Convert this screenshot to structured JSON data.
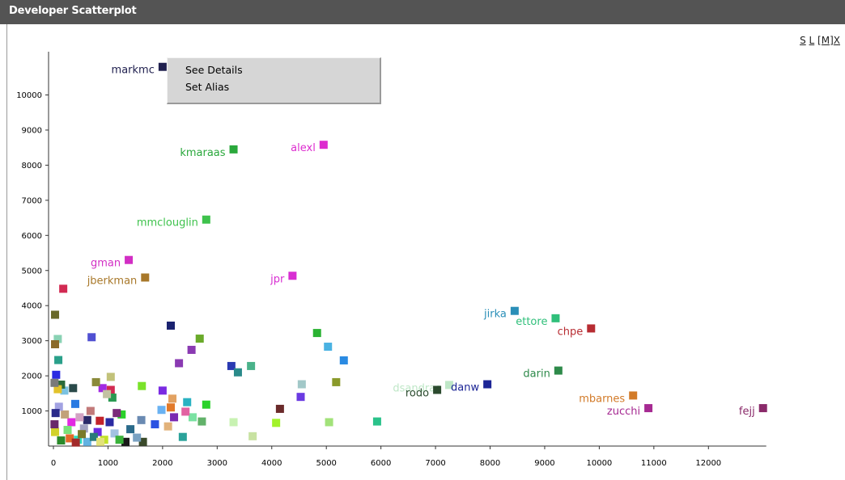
{
  "window": {
    "title": "Developer Scatterplot"
  },
  "controls": {
    "s": "S",
    "l": "L",
    "m": "[M]",
    "x": "X"
  },
  "context_menu": {
    "items": [
      "See Details",
      "Set Alias"
    ]
  },
  "chart_data": {
    "type": "scatter",
    "title": "",
    "xlabel": "",
    "ylabel": "",
    "xlim": [
      0,
      13000
    ],
    "ylim": [
      0,
      11000
    ],
    "xticks": [
      0,
      1000,
      2000,
      3000,
      4000,
      5000,
      6000,
      7000,
      8000,
      9000,
      10000,
      11000,
      12000
    ],
    "yticks": [
      1000,
      2000,
      3000,
      4000,
      5000,
      6000,
      7000,
      8000,
      9000,
      10000
    ],
    "labeled_points": [
      {
        "name": "markmc",
        "x": 2000,
        "y": 10800,
        "color": "#20204f"
      },
      {
        "name": "kmaraas",
        "x": 3300,
        "y": 8450,
        "color": "#2aa83c"
      },
      {
        "name": "alexl",
        "x": 4950,
        "y": 8580,
        "color": "#dd2ccf"
      },
      {
        "name": "mmclouglin",
        "x": 2800,
        "y": 6450,
        "color": "#3ec24c"
      },
      {
        "name": "gman",
        "x": 1380,
        "y": 5300,
        "color": "#d22ec4"
      },
      {
        "name": "jberkman",
        "x": 1680,
        "y": 4800,
        "color": "#a8782a"
      },
      {
        "name": "jpr",
        "x": 4380,
        "y": 4850,
        "color": "#d82ed2"
      },
      {
        "name": "jirka",
        "x": 8450,
        "y": 3850,
        "color": "#2a8fb8"
      },
      {
        "name": "ettore",
        "x": 9200,
        "y": 3640,
        "color": "#2fbf7a"
      },
      {
        "name": "chpe",
        "x": 9850,
        "y": 3350,
        "color": "#b72c32"
      },
      {
        "name": "darin",
        "x": 9250,
        "y": 2150,
        "color": "#2e8a4a"
      },
      {
        "name": "dsandras",
        "x": 7250,
        "y": 1740,
        "color": "#bfe7c7"
      },
      {
        "name": "rodo",
        "x": 7030,
        "y": 1600,
        "color": "#2b4a2e"
      },
      {
        "name": "danw",
        "x": 7950,
        "y": 1760,
        "color": "#1c2596"
      },
      {
        "name": "mbarnes",
        "x": 10620,
        "y": 1440,
        "color": "#d27a28"
      },
      {
        "name": "zucchi",
        "x": 10900,
        "y": 1080,
        "color": "#a62a92"
      },
      {
        "name": "fejj",
        "x": 13000,
        "y": 1080,
        "color": "#8a2a6a"
      }
    ],
    "unlabeled_points": [
      {
        "x": 180,
        "y": 4480,
        "color": "#d22a52"
      },
      {
        "x": 30,
        "y": 3740,
        "color": "#6a6a2a"
      },
      {
        "x": 80,
        "y": 3050,
        "color": "#8ad2b4"
      },
      {
        "x": 30,
        "y": 2900,
        "color": "#8a6a2a"
      },
      {
        "x": 90,
        "y": 2450,
        "color": "#2aa08a"
      },
      {
        "x": 700,
        "y": 3100,
        "color": "#5050d2"
      },
      {
        "x": 2150,
        "y": 3430,
        "color": "#1a2270"
      },
      {
        "x": 2680,
        "y": 3060,
        "color": "#6aaa2a"
      },
      {
        "x": 2530,
        "y": 2740,
        "color": "#8a3ab2"
      },
      {
        "x": 2300,
        "y": 2360,
        "color": "#8a3ab2"
      },
      {
        "x": 3260,
        "y": 2280,
        "color": "#2a3ab2"
      },
      {
        "x": 3380,
        "y": 2100,
        "color": "#2a8a8a"
      },
      {
        "x": 3620,
        "y": 2280,
        "color": "#4ab28a"
      },
      {
        "x": 4830,
        "y": 3220,
        "color": "#2ab232"
      },
      {
        "x": 5030,
        "y": 2830,
        "color": "#4ab2e2"
      },
      {
        "x": 5320,
        "y": 2440,
        "color": "#2a8ae2"
      },
      {
        "x": 4550,
        "y": 1760,
        "color": "#a2c8c8"
      },
      {
        "x": 5180,
        "y": 1820,
        "color": "#8a9a2a"
      },
      {
        "x": 4530,
        "y": 1400,
        "color": "#6a3ae2"
      },
      {
        "x": 4150,
        "y": 1060,
        "color": "#6a2a2a"
      },
      {
        "x": 5050,
        "y": 680,
        "color": "#a2e27a"
      },
      {
        "x": 4080,
        "y": 660,
        "color": "#a2f22a"
      },
      {
        "x": 3650,
        "y": 280,
        "color": "#c8e2a2"
      },
      {
        "x": 3300,
        "y": 680,
        "color": "#c8f2b2"
      },
      {
        "x": 5930,
        "y": 700,
        "color": "#2ac28a"
      },
      {
        "x": 2800,
        "y": 1180,
        "color": "#2ad22a"
      },
      {
        "x": 2720,
        "y": 700,
        "color": "#62b26a"
      },
      {
        "x": 2550,
        "y": 820,
        "color": "#7ae2a2"
      },
      {
        "x": 2450,
        "y": 1250,
        "color": "#2ab2c2"
      },
      {
        "x": 2420,
        "y": 980,
        "color": "#e262a2"
      },
      {
        "x": 2370,
        "y": 260,
        "color": "#2aa29a"
      },
      {
        "x": 2210,
        "y": 820,
        "color": "#7a2ab2"
      },
      {
        "x": 2180,
        "y": 1350,
        "color": "#e2a262"
      },
      {
        "x": 2150,
        "y": 1100,
        "color": "#e27a2a"
      },
      {
        "x": 2100,
        "y": 560,
        "color": "#e2b27a"
      },
      {
        "x": 2000,
        "y": 1580,
        "color": "#7a2ae2"
      },
      {
        "x": 1980,
        "y": 1030,
        "color": "#6ab2f2"
      },
      {
        "x": 1860,
        "y": 620,
        "color": "#2a52e2"
      },
      {
        "x": 1620,
        "y": 1710,
        "color": "#7ae22a"
      },
      {
        "x": 1610,
        "y": 740,
        "color": "#6a8ab2"
      },
      {
        "x": 1640,
        "y": 120,
        "color": "#3a4a2a"
      },
      {
        "x": 1050,
        "y": 1970,
        "color": "#c2c27a"
      },
      {
        "x": 1050,
        "y": 1600,
        "color": "#d22a52"
      },
      {
        "x": 900,
        "y": 1650,
        "color": "#a22ae2"
      },
      {
        "x": 780,
        "y": 1820,
        "color": "#8a8a3a"
      },
      {
        "x": 1080,
        "y": 1380,
        "color": "#2a9a52"
      },
      {
        "x": 980,
        "y": 1480,
        "color": "#c2c2a2"
      },
      {
        "x": 1250,
        "y": 900,
        "color": "#2ad22a"
      },
      {
        "x": 1030,
        "y": 680,
        "color": "#2a2aa2"
      },
      {
        "x": 1160,
        "y": 940,
        "color": "#7a2a7a"
      },
      {
        "x": 1120,
        "y": 360,
        "color": "#a2c2e2"
      },
      {
        "x": 1410,
        "y": 480,
        "color": "#2a6a8a"
      },
      {
        "x": 1320,
        "y": 120,
        "color": "#1a1a1a"
      },
      {
        "x": 1210,
        "y": 180,
        "color": "#3ab23a"
      },
      {
        "x": 930,
        "y": 180,
        "color": "#c2e22a"
      },
      {
        "x": 850,
        "y": 720,
        "color": "#c2222a"
      },
      {
        "x": 810,
        "y": 400,
        "color": "#6a2ae2"
      },
      {
        "x": 680,
        "y": 1000,
        "color": "#c27a7a"
      },
      {
        "x": 620,
        "y": 740,
        "color": "#2a2a6a"
      },
      {
        "x": 620,
        "y": 120,
        "color": "#62b2e2"
      },
      {
        "x": 560,
        "y": 500,
        "color": "#a2a2c2"
      },
      {
        "x": 480,
        "y": 820,
        "color": "#d2a2c2"
      },
      {
        "x": 400,
        "y": 1200,
        "color": "#2a7ae2"
      },
      {
        "x": 360,
        "y": 1650,
        "color": "#2a4a4a"
      },
      {
        "x": 330,
        "y": 680,
        "color": "#e22ae2"
      },
      {
        "x": 260,
        "y": 460,
        "color": "#7ae27a"
      },
      {
        "x": 200,
        "y": 1580,
        "color": "#7ac2e2"
      },
      {
        "x": 210,
        "y": 900,
        "color": "#c2a27a"
      },
      {
        "x": 140,
        "y": 1750,
        "color": "#2a6a3a"
      },
      {
        "x": 100,
        "y": 1120,
        "color": "#a2a2e2"
      },
      {
        "x": 80,
        "y": 1620,
        "color": "#e2c22a"
      },
      {
        "x": 50,
        "y": 2030,
        "color": "#2a2ae2"
      },
      {
        "x": 20,
        "y": 1800,
        "color": "#7a7a7a"
      },
      {
        "x": 40,
        "y": 940,
        "color": "#2a2a8a"
      },
      {
        "x": 30,
        "y": 400,
        "color": "#d2d22a"
      },
      {
        "x": 20,
        "y": 620,
        "color": "#6a2a6a"
      },
      {
        "x": 140,
        "y": 160,
        "color": "#2a8a2a"
      },
      {
        "x": 300,
        "y": 220,
        "color": "#e26a2a"
      },
      {
        "x": 450,
        "y": 180,
        "color": "#2ae2c2"
      },
      {
        "x": 520,
        "y": 340,
        "color": "#7a7a2a"
      },
      {
        "x": 740,
        "y": 260,
        "color": "#2a7a7a"
      },
      {
        "x": 860,
        "y": 120,
        "color": "#e2e27a"
      },
      {
        "x": 410,
        "y": 100,
        "color": "#a22a2a"
      },
      {
        "x": 1530,
        "y": 240,
        "color": "#7aa2c2"
      }
    ]
  }
}
